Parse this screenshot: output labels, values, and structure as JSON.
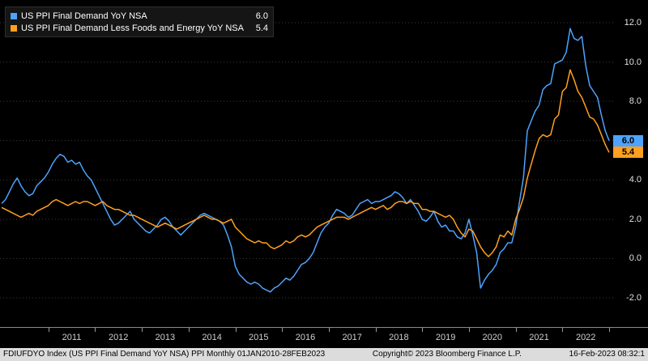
{
  "legend": {
    "series1": {
      "label": "US PPI Final Demand YoY NSA",
      "value": "6.0",
      "color": "#4da3ff"
    },
    "series2": {
      "label": "US PPI Final Demand Less Foods and Energy YoY NSA",
      "value": "5.4",
      "color": "#ffa020"
    }
  },
  "y_axis": {
    "labels": [
      "12.0",
      "10.0",
      "8.0",
      "6.0",
      "4.0",
      "2.0",
      "0.0",
      "-2.0"
    ]
  },
  "x_axis": {
    "years": [
      "2011",
      "2012",
      "2013",
      "2014",
      "2015",
      "2016",
      "2017",
      "2018",
      "2019",
      "2020",
      "2021",
      "2022"
    ]
  },
  "footer": {
    "left": "FDIUFDYO Index (US PPI Final Demand YoY NSA) PPI  Monthly 01JAN2010-28FEB2023",
    "center": "Copyright© 2023 Bloomberg Finance L.P.",
    "right": "16-Feb-2023 08:32:1"
  },
  "chart_data": {
    "type": "line",
    "title": "",
    "x_start": "2010-01",
    "x_end": "2023-01",
    "frequency": "monthly",
    "ylim": [
      -3.4,
      13.2
    ],
    "gridlines": [
      -2,
      0,
      2,
      4,
      6,
      8,
      10,
      12
    ],
    "legend_position": "top-left",
    "grid": "dotted-horizontal",
    "series": [
      {
        "name": "US PPI Final Demand YoY NSA",
        "color": "#4da3ff",
        "last_value": 6.0,
        "values": [
          2.8,
          3.0,
          3.4,
          3.8,
          4.1,
          3.7,
          3.4,
          3.2,
          3.3,
          3.7,
          3.9,
          4.1,
          4.4,
          4.8,
          5.1,
          5.3,
          5.2,
          4.9,
          5.0,
          4.8,
          4.9,
          4.5,
          4.2,
          4.0,
          3.6,
          3.2,
          2.8,
          2.4,
          2.0,
          1.7,
          1.8,
          2.0,
          2.2,
          2.4,
          2.0,
          1.8,
          1.6,
          1.4,
          1.3,
          1.5,
          1.7,
          2.0,
          2.1,
          1.9,
          1.6,
          1.4,
          1.2,
          1.4,
          1.6,
          1.8,
          2.0,
          2.2,
          2.3,
          2.2,
          2.1,
          2.0,
          1.9,
          1.7,
          1.2,
          0.6,
          -0.4,
          -0.8,
          -1.0,
          -1.2,
          -1.3,
          -1.2,
          -1.3,
          -1.5,
          -1.6,
          -1.7,
          -1.5,
          -1.4,
          -1.2,
          -1.0,
          -1.1,
          -0.9,
          -0.6,
          -0.3,
          -0.2,
          0.0,
          0.3,
          0.8,
          1.3,
          1.6,
          1.8,
          2.2,
          2.5,
          2.4,
          2.3,
          2.1,
          2.2,
          2.5,
          2.8,
          2.9,
          3.0,
          2.8,
          2.9,
          2.9,
          3.0,
          3.1,
          3.2,
          3.4,
          3.3,
          3.1,
          2.8,
          3.0,
          2.7,
          2.4,
          2.0,
          1.9,
          2.1,
          2.4,
          1.9,
          1.6,
          1.7,
          1.4,
          1.4,
          1.1,
          1.0,
          1.3,
          2.0,
          1.2,
          0.3,
          -1.5,
          -1.1,
          -0.8,
          -0.6,
          -0.3,
          0.3,
          0.5,
          0.8,
          0.8,
          1.6,
          2.9,
          4.1,
          6.5,
          7.0,
          7.5,
          7.8,
          8.6,
          8.8,
          8.9,
          9.9,
          10.0,
          10.1,
          10.5,
          11.7,
          11.2,
          11.1,
          11.3,
          9.8,
          8.8,
          8.5,
          8.2,
          7.3,
          6.5,
          6.0
        ]
      },
      {
        "name": "US PPI Final Demand Less Foods and Energy YoY NSA",
        "color": "#ffa020",
        "last_value": 5.4,
        "values": [
          2.6,
          2.5,
          2.4,
          2.3,
          2.2,
          2.1,
          2.2,
          2.3,
          2.2,
          2.4,
          2.5,
          2.6,
          2.7,
          2.9,
          3.0,
          2.9,
          2.8,
          2.7,
          2.8,
          2.9,
          2.8,
          2.9,
          2.9,
          2.8,
          2.7,
          2.8,
          2.9,
          2.7,
          2.6,
          2.5,
          2.5,
          2.4,
          2.3,
          2.2,
          2.2,
          2.1,
          2.0,
          1.9,
          1.8,
          1.7,
          1.6,
          1.7,
          1.8,
          1.7,
          1.6,
          1.5,
          1.6,
          1.7,
          1.8,
          1.9,
          2.0,
          2.1,
          2.2,
          2.1,
          2.0,
          2.0,
          1.9,
          1.8,
          1.9,
          2.0,
          1.6,
          1.4,
          1.2,
          1.0,
          0.9,
          0.8,
          0.9,
          0.8,
          0.8,
          0.6,
          0.5,
          0.6,
          0.7,
          0.9,
          0.8,
          0.9,
          1.1,
          1.2,
          1.1,
          1.2,
          1.4,
          1.6,
          1.7,
          1.8,
          1.9,
          2.0,
          2.1,
          2.1,
          2.1,
          2.0,
          2.1,
          2.2,
          2.3,
          2.4,
          2.5,
          2.6,
          2.5,
          2.6,
          2.7,
          2.5,
          2.6,
          2.8,
          2.9,
          2.9,
          2.8,
          2.9,
          2.8,
          2.8,
          2.5,
          2.5,
          2.4,
          2.4,
          2.3,
          2.2,
          2.1,
          2.2,
          2.0,
          1.6,
          1.3,
          1.1,
          1.5,
          1.4,
          1.0,
          0.6,
          0.3,
          0.1,
          0.3,
          0.6,
          1.2,
          1.1,
          1.4,
          1.2,
          2.0,
          2.5,
          3.1,
          4.1,
          4.8,
          5.5,
          6.1,
          6.3,
          6.2,
          6.3,
          7.1,
          7.3,
          8.5,
          8.7,
          9.6,
          9.1,
          8.5,
          8.2,
          7.7,
          7.2,
          7.1,
          6.8,
          6.3,
          5.8,
          5.4
        ]
      }
    ]
  }
}
